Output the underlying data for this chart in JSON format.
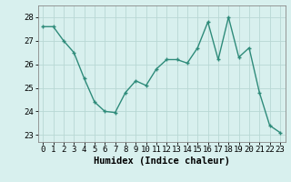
{
  "x": [
    0,
    1,
    2,
    3,
    4,
    5,
    6,
    7,
    8,
    9,
    10,
    11,
    12,
    13,
    14,
    15,
    16,
    17,
    18,
    19,
    20,
    21,
    22,
    23
  ],
  "y": [
    27.6,
    27.6,
    27.0,
    26.5,
    25.4,
    24.4,
    24.0,
    23.95,
    24.8,
    25.3,
    25.1,
    25.8,
    26.2,
    26.2,
    26.05,
    26.7,
    27.8,
    26.2,
    28.0,
    26.3,
    26.7,
    24.8,
    23.4,
    23.1
  ],
  "line_color": "#2e8b7a",
  "marker": "+",
  "bg_color": "#d8f0ee",
  "grid_color_major": "#b8d8d4",
  "grid_color_minor": "#cce8e4",
  "xlabel": "Humidex (Indice chaleur)",
  "ylim": [
    22.7,
    28.5
  ],
  "xlim": [
    -0.5,
    23.5
  ],
  "yticks": [
    23,
    24,
    25,
    26,
    27,
    28
  ],
  "xticks": [
    0,
    1,
    2,
    3,
    4,
    5,
    6,
    7,
    8,
    9,
    10,
    11,
    12,
    13,
    14,
    15,
    16,
    17,
    18,
    19,
    20,
    21,
    22,
    23
  ],
  "tick_fontsize": 6.5,
  "label_fontsize": 7.5,
  "linewidth": 1.0,
  "markersize": 3.5,
  "spine_color": "#888888"
}
